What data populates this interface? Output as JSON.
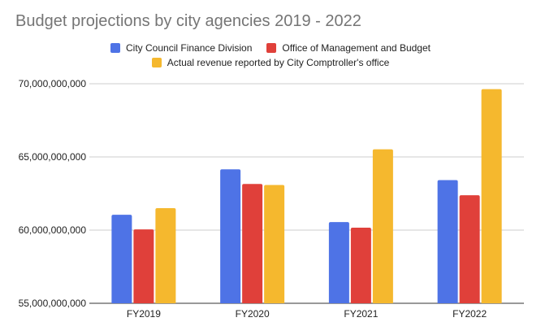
{
  "chart_data": {
    "type": "bar",
    "title": "Budget projections by city agencies 2019 - 2022",
    "categories": [
      "FY2019",
      "FY2020",
      "FY2021",
      "FY2022"
    ],
    "series": [
      {
        "name": "City Council Finance Division",
        "color": "#4e73e6",
        "values": [
          61050000000,
          64150000000,
          60550000000,
          63420000000
        ]
      },
      {
        "name": "Office of Management and Budget",
        "color": "#e0403a",
        "values": [
          60050000000,
          63150000000,
          60170000000,
          62380000000
        ]
      },
      {
        "name": "Actual revenue reported by City Comptroller's office",
        "color": "#f5b82e",
        "values": [
          61500000000,
          63080000000,
          65520000000,
          69630000000
        ]
      }
    ],
    "y_ticks": [
      "55,000,000,000",
      "60,000,000,000",
      "65,000,000,000",
      "70,000,000,000"
    ],
    "ylim": [
      55000000000,
      70000000000
    ],
    "xlabel": "",
    "ylabel": "",
    "grid": true,
    "legend_position": "top-center"
  }
}
